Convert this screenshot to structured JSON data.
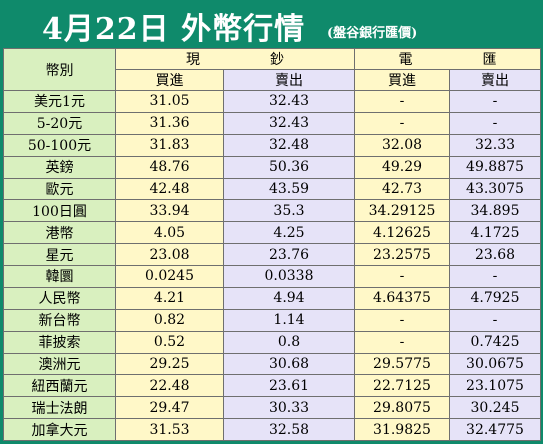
{
  "header": {
    "title": "4月22日 外幣行情",
    "subtitle": "(盤谷銀行匯價)"
  },
  "table": {
    "corner_label": "幣別",
    "cash_group": [
      "現",
      "鈔"
    ],
    "wire_group": [
      "電",
      "匯"
    ],
    "buy_label": "買進",
    "sell_label": "賣出",
    "rows": [
      {
        "currency": "美元1元",
        "cash_buy": "31.05",
        "cash_sell": "32.43",
        "wire_buy": "-",
        "wire_sell": "-"
      },
      {
        "currency": "5-20元",
        "cash_buy": "31.36",
        "cash_sell": "32.43",
        "wire_buy": "-",
        "wire_sell": "-"
      },
      {
        "currency": "50-100元",
        "cash_buy": "31.83",
        "cash_sell": "32.48",
        "wire_buy": "32.08",
        "wire_sell": "32.33"
      },
      {
        "currency": "英鎊",
        "cash_buy": "48.76",
        "cash_sell": "50.36",
        "wire_buy": "49.29",
        "wire_sell": "49.8875"
      },
      {
        "currency": "歐元",
        "cash_buy": "42.48",
        "cash_sell": "43.59",
        "wire_buy": "42.73",
        "wire_sell": "43.3075"
      },
      {
        "currency": "100日圓",
        "cash_buy": "33.94",
        "cash_sell": "35.3",
        "wire_buy": "34.29125",
        "wire_sell": "34.895"
      },
      {
        "currency": "港幣",
        "cash_buy": "4.05",
        "cash_sell": "4.25",
        "wire_buy": "4.12625",
        "wire_sell": "4.1725"
      },
      {
        "currency": "星元",
        "cash_buy": "23.08",
        "cash_sell": "23.76",
        "wire_buy": "23.2575",
        "wire_sell": "23.68"
      },
      {
        "currency": "韓圜",
        "cash_buy": "0.0245",
        "cash_sell": "0.0338",
        "wire_buy": "-",
        "wire_sell": "-"
      },
      {
        "currency": "人民幣",
        "cash_buy": "4.21",
        "cash_sell": "4.94",
        "wire_buy": "4.64375",
        "wire_sell": "4.7925"
      },
      {
        "currency": "新台幣",
        "cash_buy": "0.82",
        "cash_sell": "1.14",
        "wire_buy": "-",
        "wire_sell": "-"
      },
      {
        "currency": "菲披索",
        "cash_buy": "0.52",
        "cash_sell": "0.8",
        "wire_buy": "-",
        "wire_sell": "0.7425"
      },
      {
        "currency": "澳洲元",
        "cash_buy": "29.25",
        "cash_sell": "30.68",
        "wire_buy": "29.5775",
        "wire_sell": "30.0675"
      },
      {
        "currency": "紐西蘭元",
        "cash_buy": "22.48",
        "cash_sell": "23.61",
        "wire_buy": "22.7125",
        "wire_sell": "23.1075"
      },
      {
        "currency": "瑞士法朗",
        "cash_buy": "29.47",
        "cash_sell": "30.33",
        "wire_buy": "29.8075",
        "wire_sell": "30.245"
      },
      {
        "currency": "加拿大元",
        "cash_buy": "31.53",
        "cash_sell": "32.58",
        "wire_buy": "31.9825",
        "wire_sell": "32.4775"
      }
    ]
  },
  "colors": {
    "frame": "#0f8a6b",
    "label_cell": "#d9f0bf",
    "buy_cell": "#fff8c8",
    "sell_cell": "#e6e3f8"
  }
}
